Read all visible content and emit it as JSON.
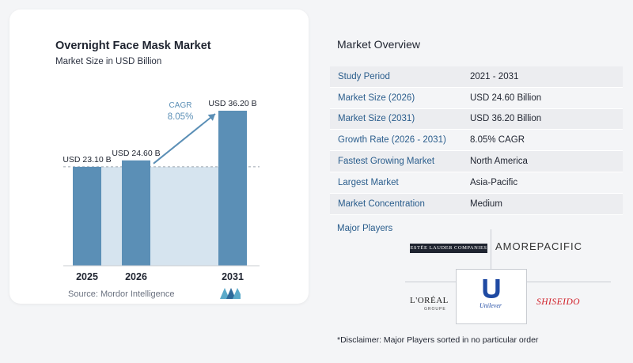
{
  "chart": {
    "title": "Overnight Face Mask Market",
    "subtitle": "Market Size in USD Billion",
    "source": "Source: Mordor Intelligence",
    "cagr_label": "CAGR",
    "cagr_value": "8.05%"
  },
  "chart_data": {
    "type": "bar",
    "title": "Overnight Face Mask Market",
    "subtitle": "Market Size in USD Billion",
    "categories": [
      "2025",
      "2026",
      "2031"
    ],
    "values": [
      23.1,
      24.6,
      36.2
    ],
    "data_labels": [
      "USD 23.10 B",
      "USD 24.60 B",
      "USD 36.20 B"
    ],
    "annotation": {
      "label": "CAGR",
      "value": "8.05%"
    },
    "colors": {
      "bar": "#5b8fb6",
      "bar_light": "#d6e4ef",
      "arrow": "#5b8fb6",
      "cagr_text": "#5b8fb6"
    },
    "grid": false
  },
  "overview": {
    "title": "Market Overview",
    "rows": [
      {
        "key": "Study Period",
        "value": "2021 - 2031"
      },
      {
        "key": "Market Size (2026)",
        "value": "USD 24.60 Billion"
      },
      {
        "key": "Market Size (2031)",
        "value": "USD 36.20 Billion"
      },
      {
        "key": "Growth Rate (2026 - 2031)",
        "value": "8.05% CAGR"
      },
      {
        "key": "Fastest Growing Market",
        "value": "North America"
      },
      {
        "key": "Largest Market",
        "value": "Asia-Pacific"
      },
      {
        "key": "Market Concentration",
        "value": "Medium"
      }
    ]
  },
  "players": {
    "title": "Major Players",
    "names": [
      "ESTĒE LAUDER COMPANIES",
      "AMOREPACIFIC",
      "L'ORÉAL",
      "GROUPE",
      "Unilever",
      "SHISEIDO"
    ]
  },
  "disclaimer": "*Disclaimer: Major Players sorted in no particular order"
}
